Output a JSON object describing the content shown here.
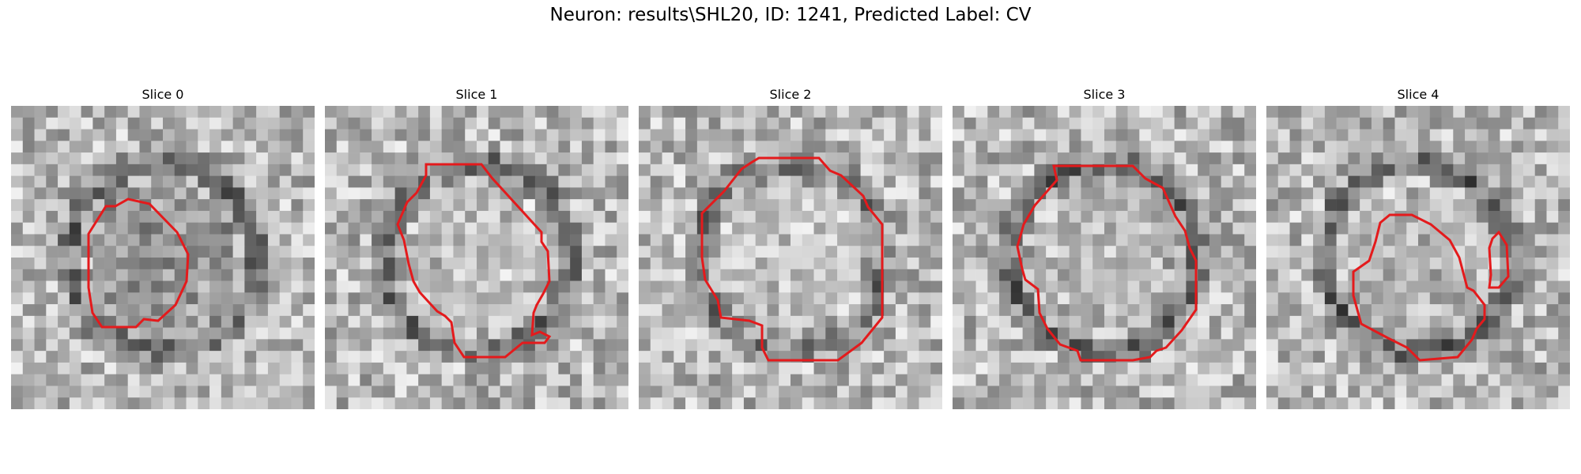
{
  "figure": {
    "title": "Neuron: results\\SHL20, ID: 1241, Predicted Label: CV"
  },
  "contour_color": "#e41a1c",
  "slices": [
    {
      "title": "Slice 0",
      "icon": "cell-contour-image",
      "seed": 11,
      "ring": 0.55,
      "center": 0.25
    },
    {
      "title": "Slice 1",
      "icon": "cell-contour-image",
      "seed": 23,
      "ring": 0.55,
      "center": 0.85
    },
    {
      "title": "Slice 2",
      "icon": "cell-contour-image",
      "seed": 37,
      "ring": 0.45,
      "center": 0.92
    },
    {
      "title": "Slice 3",
      "icon": "cell-contour-image",
      "seed": 41,
      "ring": 0.6,
      "center": 0.7
    },
    {
      "title": "Slice 4",
      "icon": "cell-contour-image",
      "seed": 53,
      "ring": 0.6,
      "center": 0.75
    }
  ]
}
